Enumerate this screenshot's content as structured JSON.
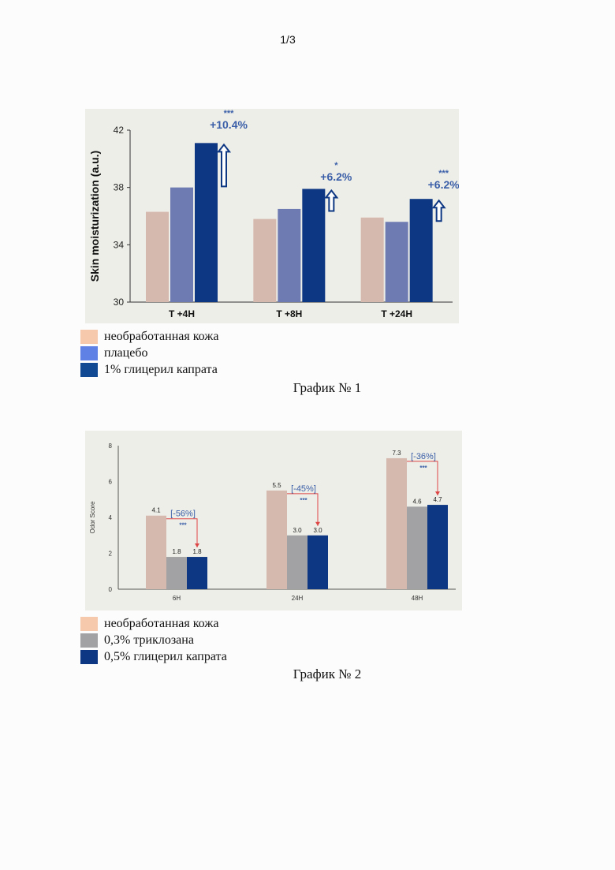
{
  "page_number": "1/3",
  "colors": {
    "untreated": "#d6b9ae",
    "placebo": "#6e7bb3",
    "glyceryl1": "#0d3782",
    "triclosan": "#a2a2a4",
    "glyceryl05": "#0d3782",
    "annotation": "#3a5fa8",
    "arrow_red": "#d44",
    "legend_untreated": "#f6c9ad",
    "legend_placebo": "#5f80e4",
    "legend_glyceryl": "#114a92"
  },
  "chart_data": [
    {
      "type": "bar",
      "ylabel": "Skin moisturization (a.u.)",
      "ylim": [
        30,
        42
      ],
      "yticks": [
        "30",
        "34",
        "38",
        "42"
      ],
      "categories": [
        "T +4H",
        "T +8H",
        "T +24H"
      ],
      "series": [
        {
          "name": "необработанная кожа",
          "values": [
            36.3,
            35.8,
            35.9
          ]
        },
        {
          "name": "плацебо",
          "values": [
            38.0,
            36.5,
            35.6
          ]
        },
        {
          "name": "1% глицерил капрата",
          "values": [
            41.1,
            37.9,
            37.2
          ]
        }
      ],
      "annotations": [
        {
          "stars": "***",
          "text": "+10.4%"
        },
        {
          "stars": "*",
          "text": "+6.2%"
        },
        {
          "stars": "***",
          "text": "+6.2%"
        }
      ],
      "grid": false
    },
    {
      "type": "bar",
      "ylabel": "Odor Score",
      "ylim": [
        0,
        8
      ],
      "yticks": [
        "0",
        "2",
        "4",
        "6",
        "8"
      ],
      "categories": [
        "6H",
        "24H",
        "48H"
      ],
      "series": [
        {
          "name": "необработанная кожа",
          "values": [
            4.1,
            5.5,
            7.3
          ]
        },
        {
          "name": "0,3% триклозана",
          "values": [
            1.8,
            3.0,
            4.6
          ]
        },
        {
          "name": "0,5% глицерил капрата",
          "values": [
            1.8,
            3.0,
            4.7
          ]
        }
      ],
      "data_labels": [
        [
          "4.1",
          "5.5",
          "7.3"
        ],
        [
          "1.8",
          "3.0",
          "4.6"
        ],
        [
          "1.8",
          "3.0",
          "4.7"
        ]
      ],
      "annotations": [
        {
          "text": "[-56%]",
          "stars": "***"
        },
        {
          "text": "[-45%]",
          "stars": "***"
        },
        {
          "text": "[-36%]",
          "stars": "***"
        }
      ],
      "grid": false
    }
  ],
  "legend1": [
    {
      "label": "необработанная кожа"
    },
    {
      "label": "плацебо"
    },
    {
      "label": "1% глицерил капрата"
    }
  ],
  "caption1": "График № 1",
  "legend2": [
    {
      "label": "необработанная кожа"
    },
    {
      "label": "0,3% триклозана"
    },
    {
      "label": "0,5% глицерил капрата"
    }
  ],
  "caption2": "График № 2"
}
